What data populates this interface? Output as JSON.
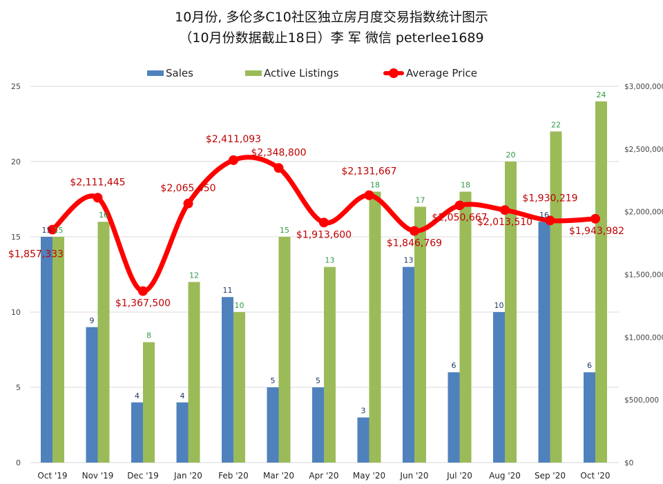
{
  "chart_data": {
    "type": "bar+line",
    "title": "10月份, 多伦多C10社区独立房月度交易指数统计图示",
    "subtitle": "（10月份数据截止18日）李 军  微信  peterlee1689",
    "categories": [
      "Oct '19",
      "Nov '19",
      "Dec '19",
      "Jan '20",
      "Feb '20",
      "Mar '20",
      "Apr '20",
      "May '20",
      "Jun '20",
      "Jul '20",
      "Aug '20",
      "Sep '20",
      "Oct '20"
    ],
    "series": [
      {
        "name": "Sales",
        "type": "bar",
        "axis": "left",
        "color": "#4f81bd",
        "values": [
          15,
          9,
          4,
          4,
          11,
          5,
          5,
          3,
          13,
          6,
          10,
          16,
          6
        ]
      },
      {
        "name": "Active Listings",
        "type": "bar",
        "axis": "left",
        "color": "#9bbb59",
        "values": [
          15,
          16,
          8,
          12,
          10,
          15,
          13,
          18,
          17,
          18,
          20,
          22,
          24
        ]
      },
      {
        "name": "Average Price",
        "type": "line",
        "axis": "right",
        "color": "#ff0000",
        "values": [
          1857333,
          2111445,
          1367500,
          2065450,
          2411093,
          2348800,
          1913600,
          2131667,
          1846769,
          2050667,
          2013510,
          1930219,
          1943982
        ],
        "labels": [
          "$1,857,333",
          "$2,111,445",
          "$1,367,500",
          "$2,065,450",
          "$2,411,093",
          "$2,348,800",
          "$1,913,600",
          "$2,131,667",
          "$1,846,769",
          "$2,050,667",
          "$2,013,510",
          "$1,930,219",
          "$1,943,982"
        ]
      }
    ],
    "ylim_left": [
      0,
      25
    ],
    "yticks_left": [
      "0",
      "5",
      "10",
      "15",
      "20",
      "25"
    ],
    "ylim_right": [
      0,
      3000000
    ],
    "yticks_right": [
      "$0",
      "$500,000",
      "$1,000,000",
      "$1,500,000",
      "$2,000,000",
      "$2,500,000",
      "$3,000,000"
    ],
    "legend": "top",
    "grid": true
  }
}
